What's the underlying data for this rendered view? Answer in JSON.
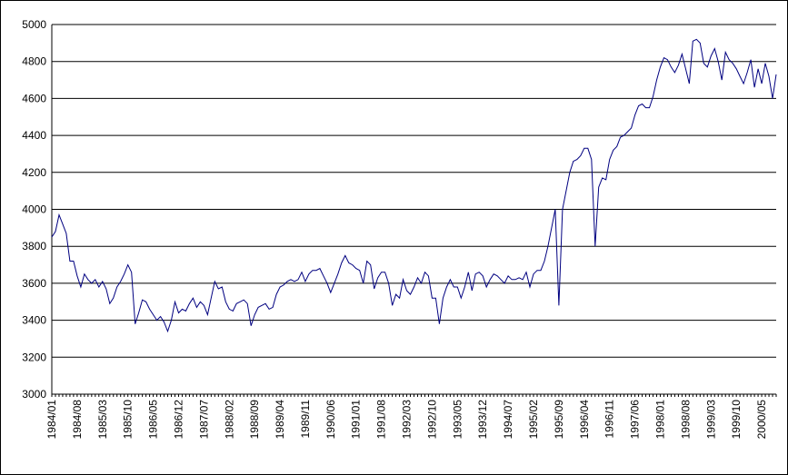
{
  "chart_data": {
    "type": "line",
    "title": "",
    "xlabel": "",
    "ylabel": "",
    "ylim": [
      3000,
      5000
    ],
    "yticks": [
      3000,
      3200,
      3400,
      3600,
      3800,
      4000,
      4200,
      4400,
      4600,
      4800,
      5000
    ],
    "grid": true,
    "legend": "none",
    "line_color": "#000080",
    "x_tick_labels": [
      "1984/01",
      "1984/08",
      "1985/03",
      "1985/10",
      "1986/05",
      "1986/12",
      "1987/07",
      "1988/02",
      "1988/09",
      "1989/04",
      "1989/11",
      "1990/06",
      "1991/01",
      "1991/08",
      "1992/03",
      "1992/10",
      "1993/05",
      "1993/12",
      "1994/07",
      "1995/02",
      "1995/09",
      "1996/04",
      "1996/11",
      "1997/06",
      "1998/01",
      "1998/08",
      "1999/03",
      "1999/10",
      "2000/05"
    ],
    "series": [
      {
        "x": [
          "1984/01",
          "1984/02",
          "1984/03",
          "1984/04",
          "1984/05",
          "1984/06",
          "1984/07",
          "1984/08",
          "1984/09",
          "1984/10",
          "1984/11",
          "1984/12",
          "1985/01",
          "1985/02",
          "1985/03",
          "1985/04",
          "1985/05",
          "1985/06",
          "1985/07",
          "1985/08",
          "1985/09",
          "1985/10",
          "1985/11",
          "1985/12",
          "1986/01",
          "1986/02",
          "1986/03",
          "1986/04",
          "1986/05",
          "1986/06",
          "1986/07",
          "1986/08",
          "1986/09",
          "1986/10",
          "1986/11",
          "1986/12",
          "1987/01",
          "1987/02",
          "1987/03",
          "1987/04",
          "1987/05",
          "1987/06",
          "1987/07",
          "1987/08",
          "1987/09",
          "1987/10",
          "1987/11",
          "1987/12",
          "1988/01",
          "1988/02",
          "1988/03",
          "1988/04",
          "1988/05",
          "1988/06",
          "1988/07",
          "1988/08",
          "1988/09",
          "1988/10",
          "1988/11",
          "1988/12",
          "1989/01",
          "1989/02",
          "1989/03",
          "1989/04",
          "1989/05",
          "1989/06",
          "1989/07",
          "1989/08",
          "1989/09",
          "1989/10",
          "1989/11",
          "1989/12",
          "1990/01",
          "1990/02",
          "1990/03",
          "1990/04",
          "1990/05",
          "1990/06",
          "1990/07",
          "1990/08",
          "1990/09",
          "1990/10",
          "1990/11",
          "1990/12",
          "1991/01",
          "1991/02",
          "1991/03",
          "1991/04",
          "1991/05",
          "1991/06",
          "1991/07",
          "1991/08",
          "1991/09",
          "1991/10",
          "1991/11",
          "1991/12",
          "1992/01",
          "1992/02",
          "1992/03",
          "1992/04",
          "1992/05",
          "1992/06",
          "1992/07",
          "1992/08",
          "1992/09",
          "1992/10",
          "1992/11",
          "1992/12",
          "1993/01",
          "1993/02",
          "1993/03",
          "1993/04",
          "1993/05",
          "1993/06",
          "1993/07",
          "1993/08",
          "1993/09",
          "1993/10",
          "1993/11",
          "1993/12",
          "1994/01",
          "1994/02",
          "1994/03",
          "1994/04",
          "1994/05",
          "1994/06",
          "1994/07",
          "1994/08",
          "1994/09",
          "1994/10",
          "1994/11",
          "1994/12",
          "1995/01",
          "1995/02",
          "1995/03",
          "1995/04",
          "1995/05",
          "1995/06",
          "1995/07",
          "1995/08",
          "1995/09",
          "1995/10",
          "1995/11",
          "1995/12",
          "1996/01",
          "1996/02",
          "1996/03",
          "1996/04",
          "1996/05",
          "1996/06",
          "1996/07",
          "1996/08",
          "1996/09",
          "1996/10",
          "1996/11",
          "1996/12",
          "1997/01",
          "1997/02",
          "1997/03",
          "1997/04",
          "1997/05",
          "1997/06",
          "1997/07",
          "1997/08",
          "1997/09",
          "1997/10",
          "1997/11",
          "1997/12",
          "1998/01",
          "1998/02",
          "1998/03",
          "1998/04",
          "1998/05",
          "1998/06",
          "1998/07",
          "1998/08",
          "1998/09",
          "1998/10",
          "1998/11",
          "1998/12",
          "1999/01",
          "1999/02",
          "1999/03",
          "1999/04",
          "1999/05",
          "1999/06",
          "1999/07",
          "1999/08",
          "1999/09",
          "1999/10",
          "1999/11",
          "1999/12",
          "2000/01",
          "2000/02",
          "2000/03",
          "2000/04",
          "2000/05",
          "2000/06",
          "2000/07",
          "2000/08",
          "2000/09"
        ],
        "values": [
          3850,
          3880,
          3970,
          3920,
          3870,
          3720,
          3720,
          3640,
          3580,
          3650,
          3620,
          3600,
          3620,
          3580,
          3610,
          3570,
          3490,
          3520,
          3580,
          3610,
          3650,
          3700,
          3660,
          3380,
          3440,
          3510,
          3500,
          3460,
          3430,
          3400,
          3420,
          3390,
          3340,
          3400,
          3500,
          3440,
          3460,
          3450,
          3490,
          3520,
          3470,
          3500,
          3480,
          3430,
          3520,
          3610,
          3570,
          3580,
          3500,
          3460,
          3450,
          3490,
          3500,
          3510,
          3490,
          3370,
          3430,
          3470,
          3480,
          3490,
          3460,
          3470,
          3540,
          3580,
          3590,
          3610,
          3620,
          3610,
          3620,
          3660,
          3610,
          3650,
          3670,
          3670,
          3680,
          3640,
          3600,
          3550,
          3600,
          3650,
          3710,
          3750,
          3710,
          3700,
          3680,
          3670,
          3600,
          3720,
          3700,
          3570,
          3630,
          3660,
          3660,
          3600,
          3480,
          3540,
          3520,
          3620,
          3560,
          3540,
          3580,
          3630,
          3600,
          3660,
          3640,
          3520,
          3520,
          3380,
          3520,
          3580,
          3620,
          3580,
          3580,
          3520,
          3580,
          3660,
          3560,
          3650,
          3660,
          3640,
          3580,
          3620,
          3650,
          3640,
          3620,
          3600,
          3640,
          3620,
          3620,
          3630,
          3620,
          3660,
          3580,
          3650,
          3670,
          3670,
          3720,
          3800,
          3900,
          4000,
          3480,
          4000,
          4100,
          4200,
          4260,
          4270,
          4290,
          4330,
          4330,
          4270,
          3800,
          4120,
          4170,
          4160,
          4270,
          4320,
          4340,
          4390,
          4400,
          4420,
          4440,
          4510,
          4560,
          4570,
          4550,
          4550,
          4610,
          4700,
          4770,
          4820,
          4810,
          4770,
          4740,
          4780,
          4840,
          4760,
          4680,
          4910,
          4920,
          4900,
          4790,
          4770,
          4830,
          4870,
          4800,
          4700,
          4850,
          4810,
          4790,
          4760,
          4720,
          4680,
          4740,
          4810,
          4660,
          4760,
          4680,
          4790,
          4720,
          4600,
          4730
        ]
      }
    ]
  }
}
